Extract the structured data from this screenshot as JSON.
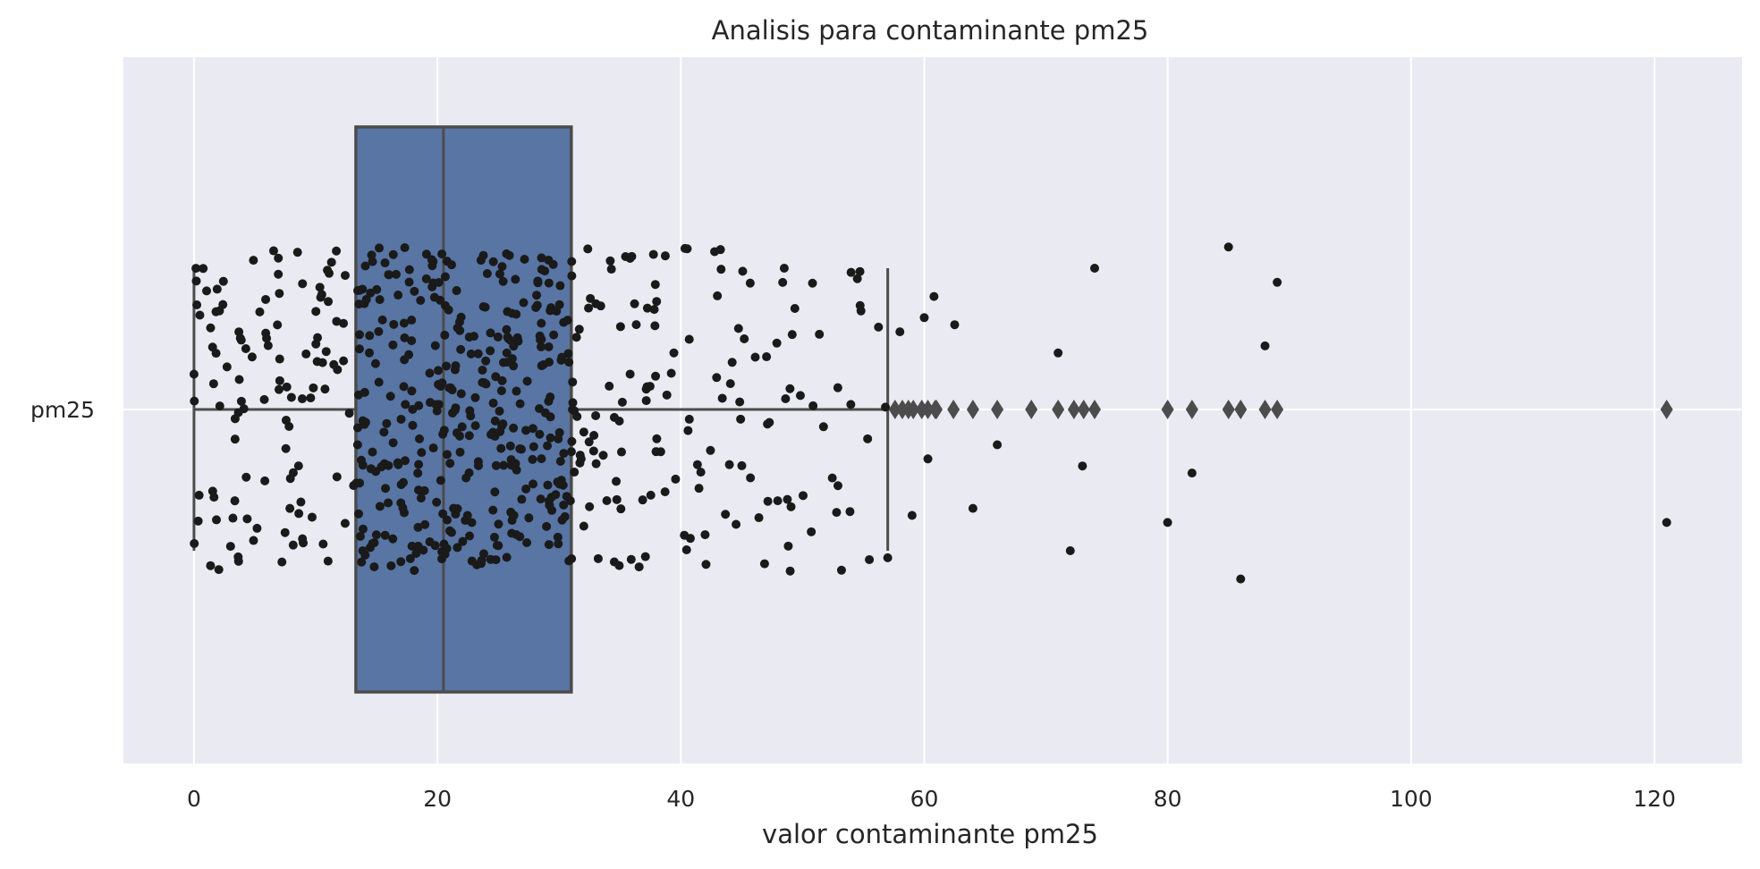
{
  "chart_data": {
    "type": "box-strip",
    "title": "Analisis para contaminante pm25",
    "xlabel": "valor contaminante pm25",
    "ylabel": "",
    "category": "pm25",
    "xlim": [
      -5.8,
      127.2
    ],
    "x_ticks": [
      0,
      20,
      40,
      60,
      80,
      100,
      120
    ],
    "x_tick_labels": [
      "0",
      "20",
      "40",
      "60",
      "80",
      "100",
      "120"
    ],
    "grid": true,
    "colors": {
      "background": "#eaeaf2",
      "grid": "#ffffff",
      "box_fill": "#5875a4",
      "box_edge": "#4c4c4c",
      "points": "#1a1a1a",
      "outlier": "#4c4c4c"
    },
    "box": {
      "whisker_low": 0,
      "q1": 13.3,
      "median": 20.5,
      "q3": 31,
      "whisker_high": 57
    },
    "outliers": [
      57.6,
      58.2,
      58.7,
      59.1,
      59.8,
      60.3,
      60.9,
      61.0,
      62.4,
      64.0,
      66.0,
      68.8,
      71.0,
      72.3,
      73.1,
      74.0,
      80.0,
      82.0,
      85.0,
      86.0,
      88.0,
      89.0,
      121.0
    ],
    "strip_points_visible_outside_box": [
      {
        "x": 0,
        "y": -0.05
      },
      {
        "x": 57.0,
        "y": 0.21
      },
      {
        "x": 58.0,
        "y": -0.11
      },
      {
        "x": 59.0,
        "y": 0.15
      },
      {
        "x": 60.0,
        "y": -0.13
      },
      {
        "x": 60.3,
        "y": 0.07
      },
      {
        "x": 60.8,
        "y": -0.16
      },
      {
        "x": 62.5,
        "y": -0.12
      },
      {
        "x": 64.0,
        "y": 0.14
      },
      {
        "x": 66.0,
        "y": 0.05
      },
      {
        "x": 71.0,
        "y": -0.08
      },
      {
        "x": 72.0,
        "y": 0.2
      },
      {
        "x": 73.0,
        "y": 0.08
      },
      {
        "x": 74.0,
        "y": -0.2
      },
      {
        "x": 80.0,
        "y": 0.16
      },
      {
        "x": 82.0,
        "y": 0.09
      },
      {
        "x": 85.0,
        "y": -0.23
      },
      {
        "x": 86.0,
        "y": 0.24
      },
      {
        "x": 88.0,
        "y": -0.09
      },
      {
        "x": 89.0,
        "y": -0.18
      },
      {
        "x": 121.0,
        "y": 0.16
      }
    ],
    "strip_bulk_range": [
      0,
      57
    ],
    "strip_bulk_count": 620,
    "strip_jitter": 0.25
  }
}
